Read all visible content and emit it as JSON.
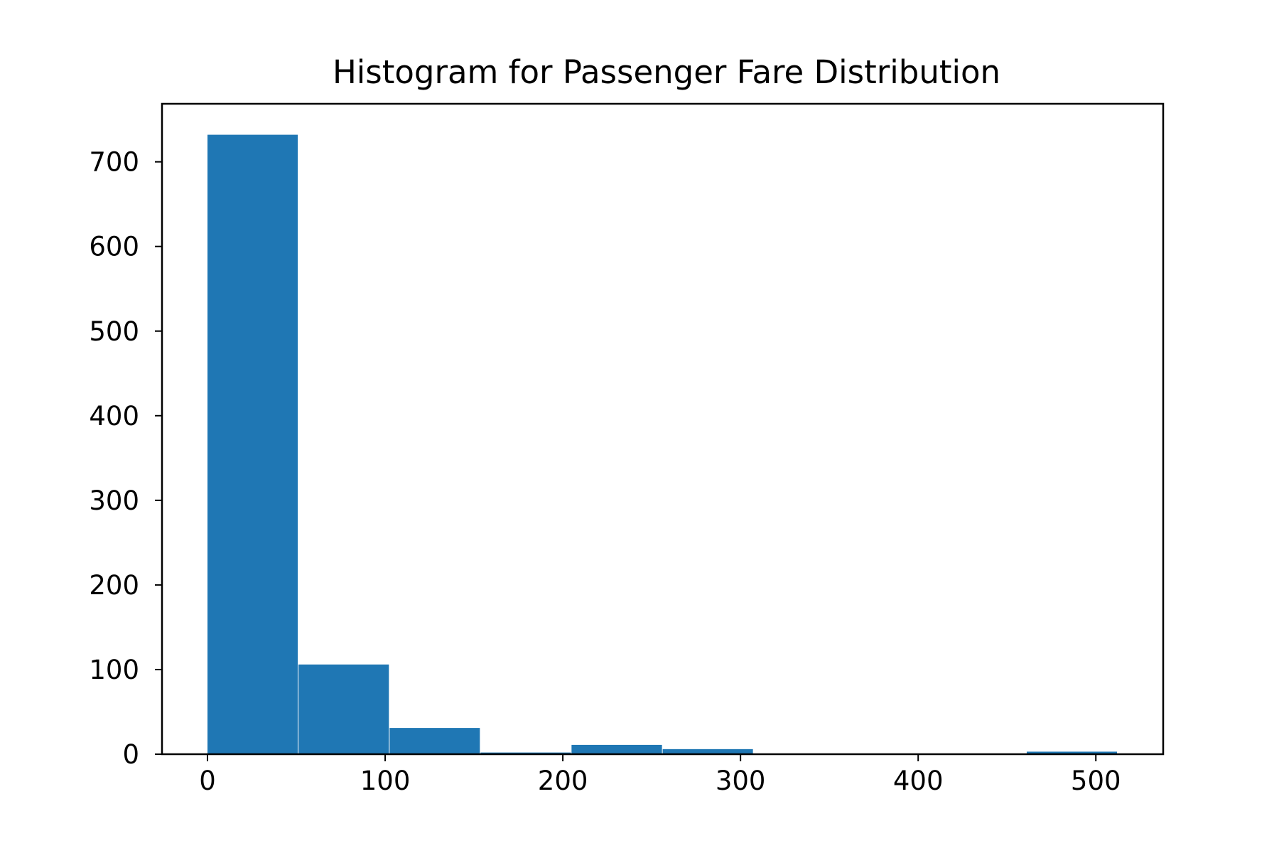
{
  "chart_data": {
    "type": "bar",
    "title": "Histogram for Passenger Fare Distribution",
    "xlabel": "",
    "ylabel": "",
    "bin_edges": [
      0,
      51.2,
      102.5,
      153.7,
      204.9,
      256.2,
      307.4,
      358.6,
      409.9,
      461.1,
      512.3
    ],
    "values": [
      732,
      106,
      31,
      2,
      11,
      6,
      0,
      0,
      0,
      3
    ],
    "xlim": [
      -25.6,
      537.9
    ],
    "ylim": [
      0,
      768.6
    ],
    "xticks": [
      0,
      100,
      200,
      300,
      400,
      500
    ],
    "xtick_labels": [
      "0",
      "100",
      "200",
      "300",
      "400",
      "500"
    ],
    "yticks": [
      0,
      100,
      200,
      300,
      400,
      500,
      600,
      700
    ],
    "ytick_labels": [
      "0",
      "100",
      "200",
      "300",
      "400",
      "500",
      "600",
      "700"
    ],
    "bar_color": "#1f77b4",
    "grid": false,
    "legend": "none"
  }
}
